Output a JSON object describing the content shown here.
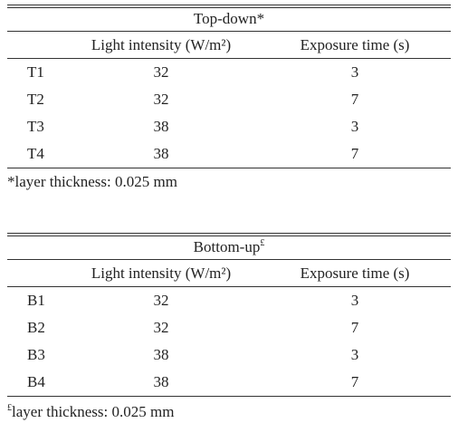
{
  "tables": [
    {
      "title": "Top-down*",
      "title_mark": null,
      "header": [
        "Light intensity (W/m²)",
        "Exposure time (s)"
      ],
      "rows": [
        [
          "T1",
          32,
          3
        ],
        [
          "T2",
          32,
          7
        ],
        [
          "T3",
          38,
          3
        ],
        [
          "T4",
          38,
          7
        ]
      ],
      "footnote_mark": null,
      "footnote": "*layer thickness: 0.025 mm"
    },
    {
      "title": "Bottom-up",
      "title_mark": "£",
      "header": [
        "Light intensity (W/m²)",
        "Exposure time (s)"
      ],
      "rows": [
        [
          "B1",
          32,
          3
        ],
        [
          "B2",
          32,
          7
        ],
        [
          "B3",
          38,
          3
        ],
        [
          "B4",
          38,
          7
        ]
      ],
      "footnote_mark": "£",
      "footnote": "layer thickness: 0.025 mm"
    }
  ]
}
